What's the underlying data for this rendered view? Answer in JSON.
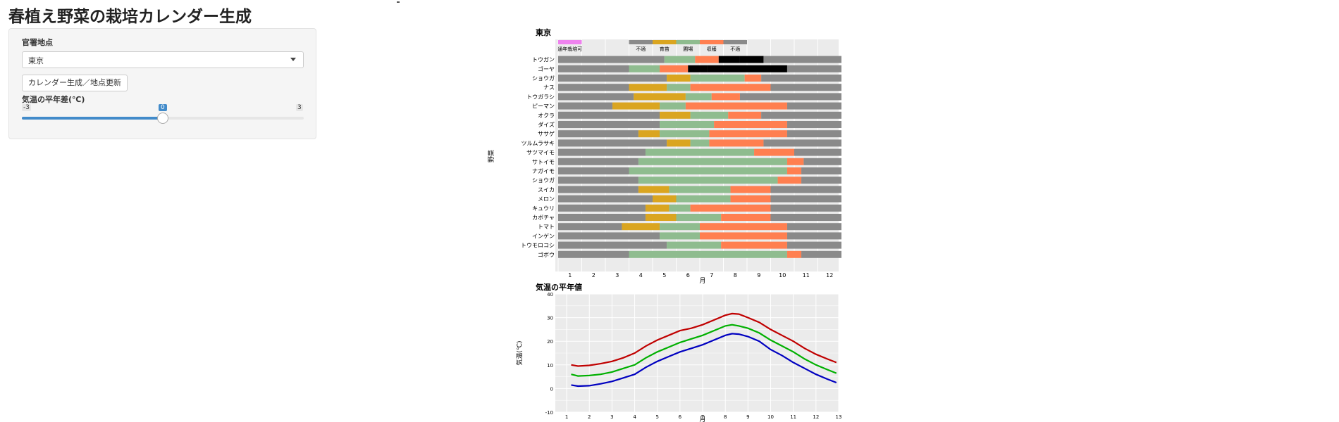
{
  "app": {
    "title": "春植え野菜の栽培カレンダー生成"
  },
  "sidebar": {
    "station_label": "官署地点",
    "station_value": "東京",
    "generate_button": "カレンダー生成／地点更新",
    "temp_diff_label": "気温の平年差(℃)",
    "slider": {
      "min_label": "-3",
      "max_label": "3",
      "value_label": "0",
      "min": -3,
      "max": 3,
      "value": 0
    }
  },
  "calendar": {
    "title": "東京",
    "ylabel": "野菜",
    "xlabel": "月",
    "month_ticks": [
      "1",
      "2",
      "3",
      "4",
      "5",
      "6",
      "7",
      "8",
      "9",
      "10",
      "11",
      "12"
    ],
    "legend": {
      "stage_label": "通年栽培可",
      "items": [
        "不適",
        "育苗",
        "圃場",
        "収穫",
        "不適"
      ]
    },
    "colors": {
      "unsuitable": "#8a8a8a",
      "seedling": "#daa520",
      "field": "#8fbc8f",
      "harvest": "#ff7f50",
      "yearround": "#ee82ee"
    },
    "legend_colors": [
      "#8a8a8a",
      "#daa520",
      "#8fbc8f",
      "#ff7f50",
      "#8a8a8a"
    ],
    "chart_data": {
      "type": "bar",
      "x_range": [
        1,
        13
      ],
      "stage_order": [
        "unsuitable",
        "seedling",
        "field",
        "harvest",
        "unsuitable"
      ],
      "vegetables": [
        {
          "name": "トウガン",
          "stages": [
            [
              1,
              5.5
            ],
            [
              5.5,
              6.8
            ],
            [
              6.8,
              7.8
            ],
            [
              7.8,
              8.7
            ],
            [
              8.7,
              9.7
            ],
            [
              9.7,
              13
            ]
          ]
        },
        {
          "name": "ゴーヤ",
          "stages": [
            [
              1,
              4
            ],
            [
              4,
              5.3
            ],
            [
              5.3,
              6.5
            ],
            [
              6.5,
              7.3
            ],
            [
              7.3,
              10.7
            ],
            [
              10.7,
              13
            ]
          ]
        },
        {
          "name": "ショウガ",
          "stages": [
            [
              1,
              5.6
            ],
            [
              5.6,
              6.6
            ],
            [
              6.6,
              8.9
            ],
            [
              8.9,
              9.6
            ],
            [
              9.6,
              13
            ]
          ]
        },
        {
          "name": "ナス",
          "stages": [
            [
              1,
              4
            ],
            [
              4,
              5.6
            ],
            [
              5.6,
              6.6
            ],
            [
              6.6,
              10.0
            ],
            [
              10.0,
              13
            ]
          ]
        },
        {
          "name": "トウガラシ",
          "stages": [
            [
              1,
              4.2
            ],
            [
              4.2,
              6.4
            ],
            [
              6.4,
              7.5
            ],
            [
              7.5,
              8.7
            ],
            [
              8.7,
              13
            ]
          ]
        },
        {
          "name": "ピーマン",
          "stages": [
            [
              1,
              3.3
            ],
            [
              3.3,
              5.3
            ],
            [
              5.3,
              6.4
            ],
            [
              6.4,
              10.7
            ],
            [
              10.7,
              13
            ]
          ]
        },
        {
          "name": "オクラ",
          "stages": [
            [
              1,
              5.3
            ],
            [
              5.3,
              6.6
            ],
            [
              6.6,
              8.2
            ],
            [
              8.2,
              9.6
            ],
            [
              9.6,
              13
            ]
          ]
        },
        {
          "name": "ダイズ",
          "stages": [
            [
              1,
              5.3
            ],
            [
              5.3,
              7.6
            ],
            [
              7.6,
              10.7
            ],
            [
              10.7,
              13
            ]
          ]
        },
        {
          "name": "ササゲ",
          "stages": [
            [
              1,
              4.4
            ],
            [
              4.4,
              5.3
            ],
            [
              5.3,
              7.4
            ],
            [
              7.4,
              10.7
            ],
            [
              10.7,
              13
            ]
          ]
        },
        {
          "name": "ツルムラサキ",
          "stages": [
            [
              1,
              5.6
            ],
            [
              5.6,
              6.6
            ],
            [
              6.6,
              7.4
            ],
            [
              7.4,
              9.7
            ],
            [
              9.7,
              13
            ]
          ]
        },
        {
          "name": "サツマイモ",
          "stages": [
            [
              1,
              4.7
            ],
            [
              4.7,
              9.3
            ],
            [
              9.3,
              11.0
            ],
            [
              11.0,
              13
            ]
          ]
        },
        {
          "name": "サトイモ",
          "stages": [
            [
              1,
              4.4
            ],
            [
              4.4,
              10.7
            ],
            [
              10.7,
              11.4
            ],
            [
              11.4,
              13
            ]
          ]
        },
        {
          "name": "ナガイモ",
          "stages": [
            [
              1,
              4.0
            ],
            [
              4.0,
              10.7
            ],
            [
              10.7,
              11.3
            ],
            [
              11.3,
              13
            ]
          ]
        },
        {
          "name": "ショウガ",
          "stages": [
            [
              1,
              4.4
            ],
            [
              4.4,
              10.3
            ],
            [
              10.3,
              11.3
            ],
            [
              11.3,
              13
            ]
          ]
        },
        {
          "name": "スイカ",
          "stages": [
            [
              1,
              4.4
            ],
            [
              4.4,
              5.7
            ],
            [
              5.7,
              8.3
            ],
            [
              8.3,
              10.0
            ],
            [
              10.0,
              13
            ]
          ]
        },
        {
          "name": "メロン",
          "stages": [
            [
              1,
              5.0
            ],
            [
              5.0,
              6.0
            ],
            [
              6.0,
              8.3
            ],
            [
              8.3,
              10.0
            ],
            [
              10.0,
              13
            ]
          ]
        },
        {
          "name": "キュウリ",
          "stages": [
            [
              1,
              4.7
            ],
            [
              4.7,
              5.7
            ],
            [
              5.7,
              6.6
            ],
            [
              6.6,
              10.0
            ],
            [
              10.0,
              13
            ]
          ]
        },
        {
          "name": "カボチャ",
          "stages": [
            [
              1,
              4.7
            ],
            [
              4.7,
              6.0
            ],
            [
              6.0,
              7.9
            ],
            [
              7.9,
              10.0
            ],
            [
              10.0,
              13
            ]
          ]
        },
        {
          "name": "トマト",
          "stages": [
            [
              1,
              3.7
            ],
            [
              3.7,
              5.3
            ],
            [
              5.3,
              7.0
            ],
            [
              7.0,
              10.7
            ],
            [
              10.7,
              13
            ]
          ]
        },
        {
          "name": "インゲン",
          "stages": [
            [
              1,
              5.3
            ],
            [
              5.3,
              7.0
            ],
            [
              7.0,
              10.7
            ],
            [
              10.7,
              13
            ]
          ]
        },
        {
          "name": "トウモロコシ",
          "stages": [
            [
              1,
              5.6
            ],
            [
              5.6,
              7.9
            ],
            [
              7.9,
              10.7
            ],
            [
              10.7,
              13
            ]
          ]
        },
        {
          "name": "ゴボウ",
          "stages": [
            [
              1,
              4.0
            ],
            [
              4.0,
              10.7
            ],
            [
              10.7,
              11.3
            ],
            [
              11.3,
              13
            ]
          ]
        }
      ]
    }
  },
  "temperature": {
    "title": "気温の平年値",
    "ylabel": "気温(℃)",
    "xlabel": "月",
    "x_ticks": [
      "1",
      "2",
      "3",
      "4",
      "5",
      "6",
      "7",
      "8",
      "9",
      "10",
      "11",
      "12",
      "13"
    ],
    "y_ticks": [
      "-10",
      "0",
      "10",
      "20",
      "30",
      "40"
    ],
    "chart_data": {
      "type": "line",
      "x": [
        1.2,
        1.5,
        2,
        2.5,
        3,
        3.5,
        4,
        4.5,
        5,
        5.5,
        6,
        6.5,
        7,
        7.5,
        8,
        8.3,
        8.6,
        9,
        9.5,
        10,
        10.5,
        11,
        11.5,
        12,
        12.5,
        12.9
      ],
      "ylim": [
        -10,
        40
      ],
      "xlim": [
        0.5,
        13
      ],
      "series": [
        {
          "color": "#c00000",
          "values": [
            10,
            9.5,
            9.8,
            10.5,
            11.5,
            13,
            15,
            18,
            20.5,
            22.5,
            24.5,
            25.5,
            27,
            29,
            31,
            31.7,
            31.5,
            30,
            28,
            25,
            22.5,
            20,
            17,
            14.5,
            12.5,
            11
          ]
        },
        {
          "color": "#00b000",
          "values": [
            6,
            5.3,
            5.5,
            6,
            7,
            8.5,
            10,
            13,
            15.5,
            17.5,
            19.5,
            21,
            22.5,
            24.5,
            26.5,
            27,
            26.5,
            25.5,
            23.5,
            20.5,
            18,
            15.5,
            12.5,
            10,
            8,
            6.5
          ]
        },
        {
          "color": "#0000c0",
          "values": [
            1.5,
            1,
            1.2,
            2,
            3,
            4.5,
            6,
            9,
            11.5,
            13.5,
            15.5,
            17,
            18.5,
            20.5,
            22.5,
            23.2,
            23,
            22,
            20,
            16.5,
            14,
            11,
            8.5,
            6,
            4,
            2.5
          ]
        }
      ]
    }
  }
}
